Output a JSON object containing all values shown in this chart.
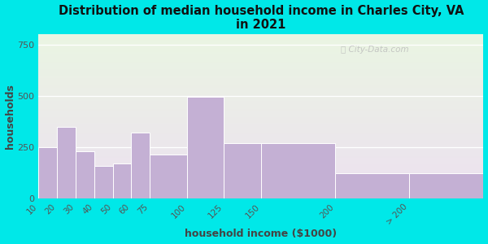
{
  "title": "Distribution of median household income in Charles City, VA\nin 2021",
  "xlabel": "household income ($1000)",
  "ylabel": "households",
  "bar_lefts": [
    0,
    1,
    2,
    3,
    4,
    5,
    6,
    8,
    10,
    12,
    16,
    20
  ],
  "bar_widths": [
    1,
    1,
    1,
    1,
    1,
    1,
    2,
    2,
    2,
    4,
    4,
    4
  ],
  "bar_values": [
    250,
    350,
    230,
    160,
    170,
    320,
    215,
    495,
    270,
    270,
    125,
    125
  ],
  "xtick_pos": [
    0,
    1,
    2,
    3,
    4,
    5,
    6,
    8,
    10,
    12,
    16,
    20,
    24
  ],
  "xtick_labels": [
    "10",
    "20",
    "30",
    "40",
    "50",
    "60",
    "75",
    "100",
    "125",
    "150",
    "200",
    "> 200",
    ""
  ],
  "bar_color": "#c4b0d4",
  "bar_edgecolor": "#ffffff",
  "ylim": [
    0,
    800
  ],
  "yticks": [
    0,
    250,
    500,
    750
  ],
  "bg_outer": "#00e8e8",
  "bg_plot_top_color": "#eaf5e2",
  "bg_plot_bottom_color": "#ece0f0",
  "title_fontsize": 10.5,
  "axis_label_fontsize": 9,
  "watermark": "City-Data.com"
}
